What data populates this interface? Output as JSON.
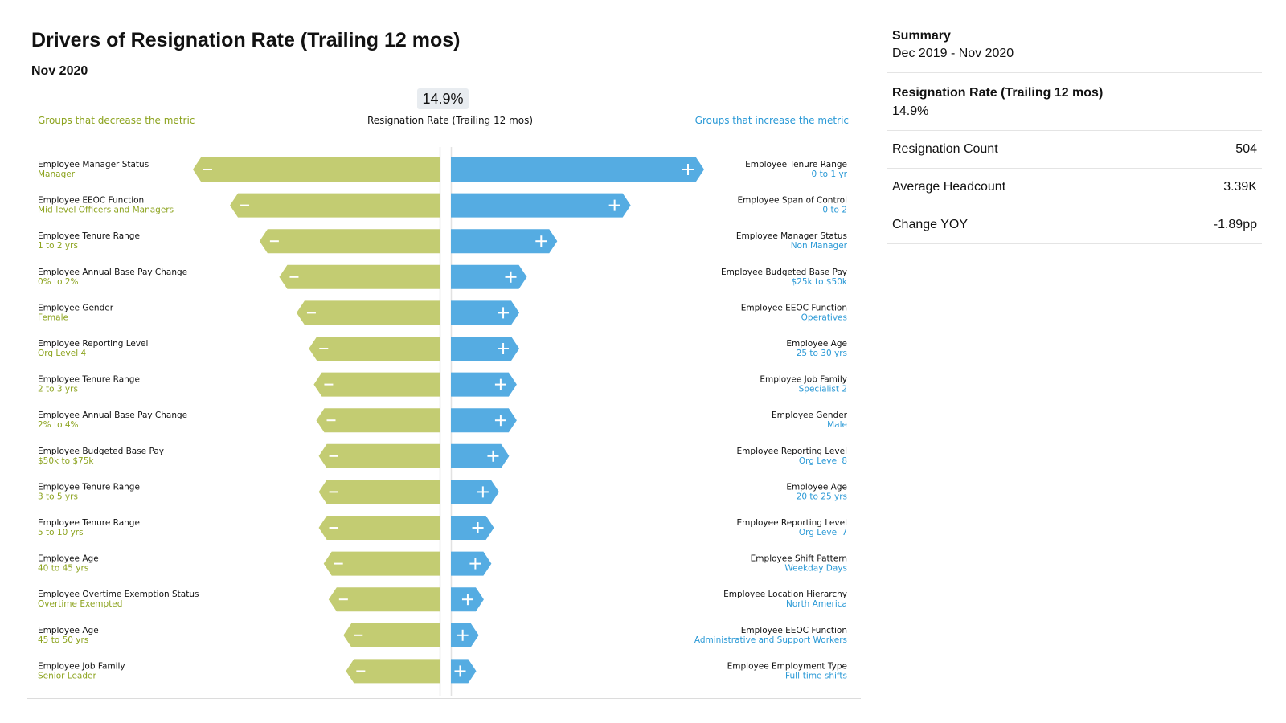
{
  "header": {
    "title": "Drivers of Resignation Rate (Trailing 12 mos)",
    "subtitle": "Nov 2020"
  },
  "metric": {
    "value": "14.9%",
    "label": "Resignation Rate (Trailing 12 mos)"
  },
  "legend": {
    "decrease": "Groups that decrease the metric",
    "increase": "Groups that increase the metric"
  },
  "colors": {
    "decrease": "#c3cc72",
    "decrease_text": "#8ca31e",
    "increase": "#55ace2",
    "increase_text": "#2a99d6"
  },
  "chart_data": {
    "type": "bar",
    "orientation": "horizontal-diverging",
    "decrease": [
      {
        "name": "Employee Manager Status",
        "value": "Manager",
        "magnitude": 100
      },
      {
        "name": "Employee EEOC Function",
        "value": "Mid-level Officers and Managers",
        "magnitude": 85
      },
      {
        "name": "Employee Tenure Range",
        "value": "1 to 2 yrs",
        "magnitude": 73
      },
      {
        "name": "Employee Annual Base Pay Change",
        "value": "0% to 2%",
        "magnitude": 65
      },
      {
        "name": "Employee Gender",
        "value": "Female",
        "magnitude": 58
      },
      {
        "name": "Employee Reporting Level",
        "value": "Org Level 4",
        "magnitude": 53
      },
      {
        "name": "Employee Tenure Range",
        "value": "2 to 3 yrs",
        "magnitude": 51
      },
      {
        "name": "Employee Annual Base Pay Change",
        "value": "2% to 4%",
        "magnitude": 50
      },
      {
        "name": "Employee Budgeted Base Pay",
        "value": "$50k to $75k",
        "magnitude": 49
      },
      {
        "name": "Employee Tenure Range",
        "value": "3 to 5 yrs",
        "magnitude": 49
      },
      {
        "name": "Employee Tenure Range",
        "value": "5 to 10 yrs",
        "magnitude": 49
      },
      {
        "name": "Employee Age",
        "value": "40 to 45 yrs",
        "magnitude": 47
      },
      {
        "name": "Employee Overtime Exemption Status",
        "value": "Overtime Exempted",
        "magnitude": 45
      },
      {
        "name": "Employee Age",
        "value": "45 to 50 yrs",
        "magnitude": 39
      },
      {
        "name": "Employee Job Family",
        "value": "Senior Leader",
        "magnitude": 38
      }
    ],
    "increase": [
      {
        "name": "Employee Tenure Range",
        "value": "0 to 1 yr",
        "magnitude": 100
      },
      {
        "name": "Employee Span of Control",
        "value": "0 to 2",
        "magnitude": 71
      },
      {
        "name": "Employee Manager Status",
        "value": "Non Manager",
        "magnitude": 42
      },
      {
        "name": "Employee Budgeted Base Pay",
        "value": "$25k to $50k",
        "magnitude": 30
      },
      {
        "name": "Employee EEOC Function",
        "value": "Operatives",
        "magnitude": 27
      },
      {
        "name": "Employee Age",
        "value": "25 to 30 yrs",
        "magnitude": 27
      },
      {
        "name": "Employee Job Family",
        "value": "Specialist 2",
        "magnitude": 26
      },
      {
        "name": "Employee Gender",
        "value": "Male",
        "magnitude": 26
      },
      {
        "name": "Employee Reporting Level",
        "value": "Org Level 8",
        "magnitude": 23
      },
      {
        "name": "Employee Age",
        "value": "20 to 25 yrs",
        "magnitude": 19
      },
      {
        "name": "Employee Reporting Level",
        "value": "Org Level 7",
        "magnitude": 17
      },
      {
        "name": "Employee Shift Pattern",
        "value": "Weekday Days",
        "magnitude": 16
      },
      {
        "name": "Employee Location Hierarchy",
        "value": "North America",
        "magnitude": 13
      },
      {
        "name": "Employee EEOC Function",
        "value": "Administrative and Support Workers",
        "magnitude": 11
      },
      {
        "name": "Employee Employment Type",
        "value": "Full-time shifts",
        "magnitude": 10
      }
    ]
  },
  "summary": {
    "title": "Summary",
    "date_range": "Dec 2019 - Nov 2020",
    "rate_title": "Resignation Rate (Trailing 12 mos)",
    "rate_value": "14.9%",
    "rows": [
      {
        "label": "Resignation Count",
        "value": "504"
      },
      {
        "label": "Average Headcount",
        "value": "3.39K"
      },
      {
        "label": "Change YOY",
        "value": "-1.89pp"
      }
    ]
  }
}
